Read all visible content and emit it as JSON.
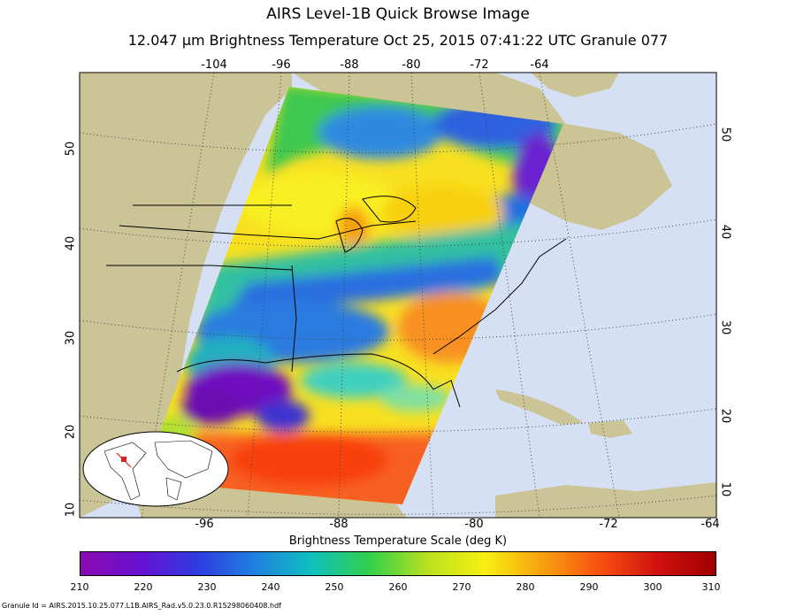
{
  "title": "AIRS Level-1B Quick Browse Image",
  "subtitle": "12.047 μm Brightness Temperature   Oct 25, 2015 07:41:22 UTC   Granule 077",
  "axes": {
    "top_lon_ticks": [
      "-104",
      "-96",
      "-88",
      "-80",
      "-72",
      "-64"
    ],
    "bottom_lon_ticks": [
      "-96",
      "-88",
      "-80",
      "-72",
      "-64"
    ],
    "left_lat_ticks": [
      "10",
      "20",
      "30",
      "40",
      "50"
    ],
    "right_lat_ticks": [
      "10",
      "20",
      "30",
      "40",
      "50"
    ]
  },
  "scale": {
    "title": "Brightness Temperature Scale (deg K)",
    "min": 210,
    "max": 310,
    "ticks": [
      "210",
      "220",
      "230",
      "240",
      "250",
      "260",
      "270",
      "280",
      "290",
      "300",
      "310"
    ],
    "colors": [
      "#8a0ab0",
      "#6a10d0",
      "#2f3ae0",
      "#1f7fe0",
      "#10c0c0",
      "#2fd04a",
      "#b8e020",
      "#f8f010",
      "#f8a010",
      "#f85010",
      "#d01010",
      "#a00000"
    ]
  },
  "map_colors": {
    "ocean": "#d6e0f5",
    "land": "#cbc496",
    "grid": "#444444"
  },
  "footer": "Granule Id = AIRS.2015.10.25.077.L1B.AIRS_Rad.v5.0.23.0.R15298060408.hdf"
}
